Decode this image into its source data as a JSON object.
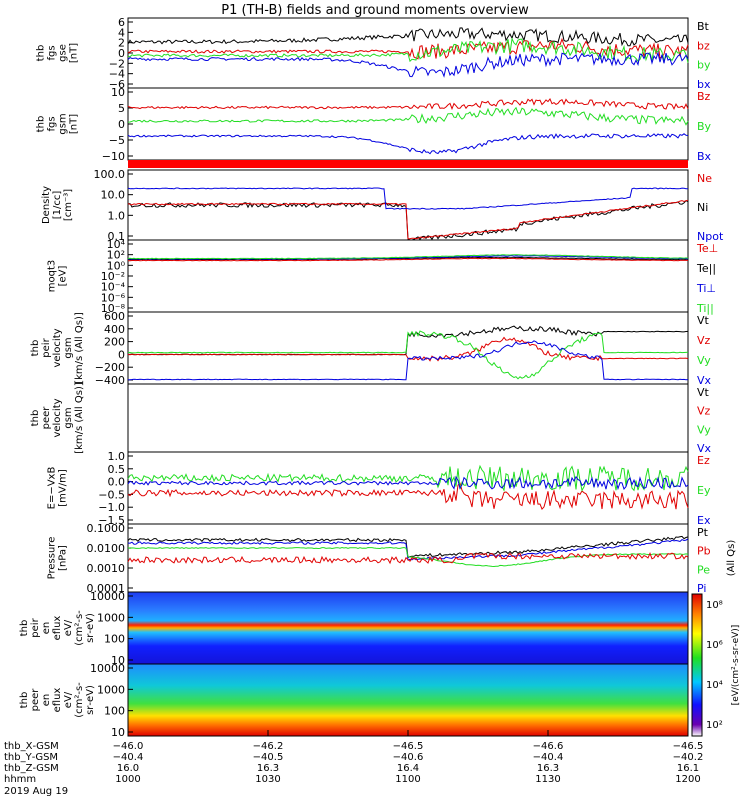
{
  "title": "P1 (TH-B) fields and ground moments overview",
  "colors": {
    "black": "#000000",
    "red": "#e00000",
    "green": "#22dd22",
    "blue": "#0000e0"
  },
  "panels": [
    {
      "id": "fgs-gse",
      "ylabel": [
        "thb",
        "fgs",
        "gse",
        "[nT]"
      ],
      "ticks": [
        "6",
        "4",
        "2",
        "0",
        "−2",
        "−4",
        "−6"
      ],
      "legend": [
        {
          "text": "Bt",
          "color": "black"
        },
        {
          "text": "bz",
          "color": "red"
        },
        {
          "text": "by",
          "color": "green"
        },
        {
          "text": "bx",
          "color": "blue"
        }
      ]
    },
    {
      "id": "fgs-gsm",
      "ylabel": [
        "thb",
        "fgs",
        "gsm",
        "[nT]"
      ],
      "ticks": [
        "10",
        "5",
        "0",
        "−5",
        "−10"
      ],
      "legend": [
        {
          "text": "Bz",
          "color": "red"
        },
        {
          "text": "By",
          "color": "green"
        },
        {
          "text": "Bx",
          "color": "blue"
        }
      ]
    },
    {
      "id": "density",
      "ylabel": [
        "Density",
        "[1/cc]",
        "[cm⁻³]"
      ],
      "ticks": [
        "100.0",
        "10.0",
        "1.0",
        "0.1"
      ],
      "legend": [
        {
          "text": "Ne",
          "color": "red"
        },
        {
          "text": "Ni",
          "color": "black"
        },
        {
          "text": "Npot",
          "color": "blue"
        }
      ]
    },
    {
      "id": "temperature",
      "ylabel": [
        "moqt3",
        "[eV]"
      ],
      "ticks": [
        "10⁴",
        "10²",
        "10⁰",
        "10⁻²",
        "10⁻⁴",
        "10⁻⁶",
        "10⁻⁸"
      ],
      "legend": [
        {
          "text": "Te⊥",
          "color": "red"
        },
        {
          "text": "Te||",
          "color": "black"
        },
        {
          "text": "Ti⊥",
          "color": "blue"
        },
        {
          "text": "Ti||",
          "color": "green"
        }
      ]
    },
    {
      "id": "peir-vel",
      "ylabel": [
        "thb",
        "peir",
        "velocity",
        "gsm",
        "[km/s (All Qs)]"
      ],
      "ticks": [
        "600",
        "400",
        "200",
        "0",
        "−200",
        "−400"
      ],
      "legend": [
        {
          "text": "Vt",
          "color": "black"
        },
        {
          "text": "Vz",
          "color": "red"
        },
        {
          "text": "Vy",
          "color": "green"
        },
        {
          "text": "Vx",
          "color": "blue"
        }
      ]
    },
    {
      "id": "peer-vel",
      "ylabel": [
        "thb",
        "peer",
        "velocity",
        "gsm",
        "[km/s (All Qs)]"
      ],
      "ticks": [],
      "legend": [
        {
          "text": "Vt",
          "color": "black"
        },
        {
          "text": "Vz",
          "color": "red"
        },
        {
          "text": "Vy",
          "color": "green"
        },
        {
          "text": "Vx",
          "color": "blue"
        }
      ]
    },
    {
      "id": "efield",
      "ylabel": [
        "E=−VxB",
        "[mV/m]"
      ],
      "ticks": [
        "1.0",
        "0.5",
        "0.0",
        "−0.5",
        "−1.0",
        "−1.5"
      ],
      "legend": [
        {
          "text": "Ez",
          "color": "red"
        },
        {
          "text": "Ey",
          "color": "green"
        },
        {
          "text": "Ex",
          "color": "blue"
        }
      ]
    },
    {
      "id": "pressure",
      "ylabel": [
        "Pressure",
        "[nPa]"
      ],
      "ticks": [
        "0.1000",
        "0.0100",
        "0.0010",
        "0.0001"
      ],
      "legend": [
        {
          "text": "Pt",
          "color": "black"
        },
        {
          "text": "Pb",
          "color": "red"
        },
        {
          "text": "Pe",
          "color": "green"
        },
        {
          "text": "Pi",
          "color": "blue"
        }
      ],
      "side_label": "(All Qs)"
    },
    {
      "id": "peir-eflux",
      "ylabel": [
        "thb",
        "peir",
        "en",
        "eflux",
        "eV/",
        "(cm²‑s‑",
        "sr‑eV)"
      ],
      "ticks": [
        "10000",
        "1000",
        "100",
        "10"
      ],
      "legend": []
    },
    {
      "id": "peer-eflux",
      "ylabel": [
        "thb",
        "peer",
        "en",
        "eflux",
        "eV/",
        "(cm²‑s‑",
        "sr‑eV)"
      ],
      "ticks": [
        "10000",
        "1000",
        "100",
        "10"
      ],
      "legend": []
    }
  ],
  "colorbar": {
    "ticks": [
      "10⁸",
      "10⁶",
      "10⁴",
      "10²"
    ],
    "label": "[eV/(cm²‑s‑sr‑eV)]"
  },
  "x_axis": {
    "rows": [
      {
        "label": "thb_X‑GSM",
        "values": [
          "−46.0",
          "−46.2",
          "−46.5",
          "−46.6",
          "−46.5"
        ]
      },
      {
        "label": "thb_Y‑GSM",
        "values": [
          "−40.4",
          "−40.5",
          "−40.6",
          "−40.4",
          "−40.2"
        ]
      },
      {
        "label": "thb_Z‑GSM",
        "values": [
          "16.0",
          "16.3",
          "16.4",
          "16.3",
          "16.1"
        ]
      },
      {
        "label": "hhmm",
        "values": [
          "1000",
          "1030",
          "1100",
          "1130",
          "1200"
        ]
      }
    ],
    "date": "2019 Aug 19"
  },
  "chart_data": {
    "type": "line",
    "title": "P1 (TH-B) fields and ground moments overview",
    "x": [
      "1000",
      "1030",
      "1100",
      "1130",
      "1200"
    ],
    "series": [
      {
        "name": "Bt",
        "panel": "fgs-gse",
        "values": [
          2.0,
          2.5,
          3.0,
          4.0,
          2.5
        ]
      },
      {
        "name": "bz",
        "panel": "fgs-gse",
        "values": [
          0.5,
          0.5,
          1.0,
          1.5,
          0.5
        ]
      },
      {
        "name": "by",
        "panel": "fgs-gse",
        "values": [
          -0.5,
          -0.5,
          -1.0,
          0.5,
          -0.5
        ]
      },
      {
        "name": "bx",
        "panel": "fgs-gse",
        "values": [
          -1.0,
          -1.5,
          -3.5,
          -1.0,
          -2.0
        ]
      },
      {
        "name": "Bz",
        "panel": "fgs-gsm",
        "values": [
          5,
          5,
          5,
          5,
          6
        ]
      },
      {
        "name": "By",
        "panel": "fgs-gsm",
        "values": [
          0,
          0,
          0,
          2,
          0
        ]
      },
      {
        "name": "Bx",
        "panel": "fgs-gsm",
        "values": [
          -5,
          -5,
          -10,
          -3,
          -5
        ]
      },
      {
        "name": "Ne",
        "panel": "density",
        "values": [
          8,
          7,
          0.5,
          1,
          5
        ]
      },
      {
        "name": "Ni",
        "panel": "density",
        "values": [
          7,
          6,
          0.3,
          0.8,
          5
        ]
      },
      {
        "name": "Npot",
        "panel": "density",
        "values": [
          20,
          50,
          0.5,
          1,
          20
        ]
      },
      {
        "name": "Vt",
        "panel": "peir-vel",
        "values": [
          350,
          350,
          100,
          380,
          350
        ]
      },
      {
        "name": "Vz",
        "panel": "peir-vel",
        "values": [
          0,
          0,
          -100,
          200,
          0
        ]
      },
      {
        "name": "Vy",
        "panel": "peir-vel",
        "values": [
          30,
          30,
          330,
          -350,
          30
        ]
      },
      {
        "name": "Vx",
        "panel": "peir-vel",
        "values": [
          -380,
          -380,
          -50,
          200,
          -380
        ]
      },
      {
        "name": "Ez",
        "panel": "efield",
        "values": [
          -0.5,
          -0.5,
          -0.5,
          -0.8,
          -0.5
        ]
      },
      {
        "name": "Ey",
        "panel": "efield",
        "values": [
          0.2,
          0.1,
          0.0,
          0.3,
          0.2
        ]
      },
      {
        "name": "Ex",
        "panel": "efield",
        "values": [
          -0.1,
          -0.1,
          -0.1,
          0.0,
          0.0
        ]
      },
      {
        "name": "Pt",
        "panel": "pressure",
        "values": [
          0.02,
          0.02,
          0.004,
          0.02,
          0.03
        ]
      },
      {
        "name": "Pb",
        "panel": "pressure",
        "values": [
          0.002,
          0.002,
          0.002,
          0.003,
          0.003
        ]
      },
      {
        "name": "Pe",
        "panel": "pressure",
        "values": [
          0.01,
          0.01,
          0.0005,
          0.008,
          0.02
        ]
      },
      {
        "name": "Pi",
        "panel": "pressure",
        "values": [
          0.015,
          0.015,
          0.003,
          0.015,
          0.025
        ]
      }
    ]
  }
}
